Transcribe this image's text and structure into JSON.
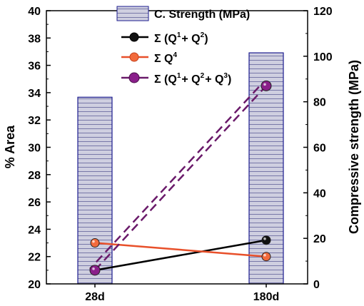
{
  "chart_data": {
    "type": "bar",
    "categories": [
      "28d",
      "180d"
    ],
    "ylabel": "% Area",
    "y2label": "Compressive strength (MPa)",
    "ylim": [
      20,
      40
    ],
    "y2lim": [
      0,
      120
    ],
    "yticks": [
      20,
      22,
      24,
      26,
      28,
      30,
      32,
      34,
      36,
      38,
      40
    ],
    "y2ticks": [
      0,
      20,
      40,
      60,
      80,
      100,
      120
    ],
    "grid": false,
    "legend_position": "top-right",
    "bars": {
      "name": "C. Strength (MPa)",
      "axis": "right",
      "values": [
        82,
        101.5
      ],
      "fill": "#cfcfe0",
      "stroke": "#1c1c8f",
      "hatch": "#7878a8"
    },
    "series": [
      {
        "name": "Σ (Q1 + Q2)",
        "label": {
          "sym": "Σ (Q",
          "a": "1",
          "b": "+ Q",
          "c": "2",
          "d": ")"
        },
        "values": [
          21.0,
          23.2
        ],
        "color": "#000000",
        "marker_fill": "#111111",
        "dash": false
      },
      {
        "name": "Σ Q4",
        "label": {
          "sym": "Σ Q",
          "a": "4"
        },
        "values": [
          23.0,
          22.0
        ],
        "color": "#e8502a",
        "marker_fill": "#f26a3c",
        "dash": false
      },
      {
        "name": "Σ (Q1 + Q2 + Q3)",
        "label": {
          "sym": "Σ (Q",
          "a": "1",
          "b": "+ Q",
          "c": "2",
          "d": "+ Q",
          "e": "3",
          "f": ")"
        },
        "values": [
          21.0,
          34.5
        ],
        "color": "#6a1a6a",
        "marker_fill": "#8a1f8a",
        "dash": true
      }
    ]
  }
}
